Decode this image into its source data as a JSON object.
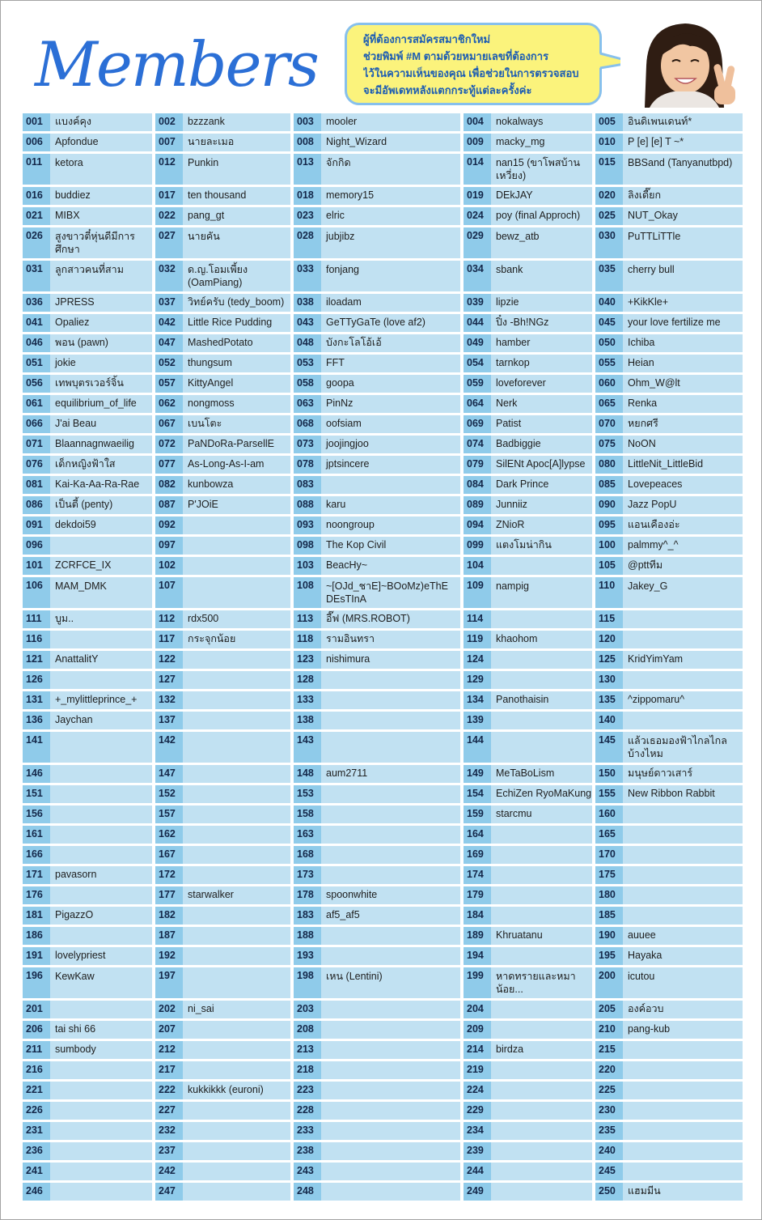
{
  "header": {
    "title": "Members"
  },
  "notice": {
    "lines": [
      "ผู้ที่ต้องการสมัครสมาชิกใหม่",
      "ช่วยพิมพ์ #M ตามด้วยหมายเลขที่ต้องการ",
      "ไว้ในความเห็นของคุณ เพื่อช่วยในการตรวจสอบ",
      "จะมีอัพเดทหลังแตกกระทู้แต่ละครั้งค่ะ"
    ]
  },
  "colors": {
    "title": "#2b6fd6",
    "number_bg": "#8fcbea",
    "name_bg": "#c1e1f2",
    "bubble_bg": "#fbf37c",
    "bubble_border": "#87c0ec",
    "bubble_text": "#1d5db3"
  },
  "members": {
    "rows": [
      [
        {
          "no": "001",
          "name": "แบงค์คุง"
        },
        {
          "no": "002",
          "name": "bzzzank"
        },
        {
          "no": "003",
          "name": "mooler"
        },
        {
          "no": "004",
          "name": "nokalways"
        },
        {
          "no": "005",
          "name": "อินดิเพนเดนท์*"
        }
      ],
      [
        {
          "no": "006",
          "name": "Apfondue"
        },
        {
          "no": "007",
          "name": "นายละเมอ"
        },
        {
          "no": "008",
          "name": "Night_Wizard"
        },
        {
          "no": "009",
          "name": "macky_mg"
        },
        {
          "no": "010",
          "name": "P [e] [e] T ~*"
        }
      ],
      [
        {
          "no": "011",
          "name": "ketora"
        },
        {
          "no": "012",
          "name": "Punkin"
        },
        {
          "no": "013",
          "name": "จักกิด"
        },
        {
          "no": "014",
          "name": "nan15 (ขาโพสบ้านเหวี่ยง)"
        },
        {
          "no": "015",
          "name": "BBSand (Tanyanutbpd)"
        }
      ],
      [
        {
          "no": "016",
          "name": "buddiez"
        },
        {
          "no": "017",
          "name": "ten thousand"
        },
        {
          "no": "018",
          "name": "memory15"
        },
        {
          "no": "019",
          "name": "DEkJAY"
        },
        {
          "no": "020",
          "name": "ลิงเดี๊ยก"
        }
      ],
      [
        {
          "no": "021",
          "name": "MIBX"
        },
        {
          "no": "022",
          "name": "pang_gt"
        },
        {
          "no": "023",
          "name": "elric"
        },
        {
          "no": "024",
          "name": "poy (final Approch)"
        },
        {
          "no": "025",
          "name": "NUT_Okay"
        }
      ],
      [
        {
          "no": "026",
          "name": "สูงขาวตี๋หุ่นดีมีการศึกษา"
        },
        {
          "no": "027",
          "name": "นายคัน"
        },
        {
          "no": "028",
          "name": "jubjibz"
        },
        {
          "no": "029",
          "name": "bewz_atb"
        },
        {
          "no": "030",
          "name": "PuTTLiTTle"
        }
      ],
      [
        {
          "no": "031",
          "name": "ลูกสาวคนที่สาม"
        },
        {
          "no": "032",
          "name": "ด.ญ.โอมเพี้ยง (OamPiang)"
        },
        {
          "no": "033",
          "name": "fonjang"
        },
        {
          "no": "034",
          "name": "sbank"
        },
        {
          "no": "035",
          "name": "cherry bull"
        }
      ],
      [
        {
          "no": "036",
          "name": "JPRESS"
        },
        {
          "no": "037",
          "name": "วิทย์ครับ (tedy_boom)"
        },
        {
          "no": "038",
          "name": "iloadam"
        },
        {
          "no": "039",
          "name": "lipzie"
        },
        {
          "no": "040",
          "name": "+KikKle+"
        }
      ],
      [
        {
          "no": "041",
          "name": "Opaliez"
        },
        {
          "no": "042",
          "name": "Little Rice Pudding"
        },
        {
          "no": "043",
          "name": "GeTTyGaTe (love af2)"
        },
        {
          "no": "044",
          "name": "ปิ๋ง -Bh!NGz"
        },
        {
          "no": "045",
          "name": "your love fertilize me"
        }
      ],
      [
        {
          "no": "046",
          "name": "พอน (pawn)"
        },
        {
          "no": "047",
          "name": "MashedPotato"
        },
        {
          "no": "048",
          "name": "บังกะโลโอ้เอ้"
        },
        {
          "no": "049",
          "name": "hamber"
        },
        {
          "no": "050",
          "name": "Ichiba"
        }
      ],
      [
        {
          "no": "051",
          "name": "jokie"
        },
        {
          "no": "052",
          "name": "thungsum"
        },
        {
          "no": "053",
          "name": "FFT"
        },
        {
          "no": "054",
          "name": "tarnkop"
        },
        {
          "no": "055",
          "name": "Heian"
        }
      ],
      [
        {
          "no": "056",
          "name": "เทพบุตรเวอร์จิ้น"
        },
        {
          "no": "057",
          "name": "KittyAngel"
        },
        {
          "no": "058",
          "name": "goopa"
        },
        {
          "no": "059",
          "name": "loveforever"
        },
        {
          "no": "060",
          "name": "Ohm_W@lt"
        }
      ],
      [
        {
          "no": "061",
          "name": "equilibrium_of_life"
        },
        {
          "no": "062",
          "name": "nongmoss"
        },
        {
          "no": "063",
          "name": "PinNz"
        },
        {
          "no": "064",
          "name": "Nerk"
        },
        {
          "no": "065",
          "name": "Renka"
        }
      ],
      [
        {
          "no": "066",
          "name": "J'ai Beau"
        },
        {
          "no": "067",
          "name": "เบนโตะ"
        },
        {
          "no": "068",
          "name": "oofsiam"
        },
        {
          "no": "069",
          "name": "Patist"
        },
        {
          "no": "070",
          "name": "หยกศรี"
        }
      ],
      [
        {
          "no": "071",
          "name": "Blaannagnwaeilig"
        },
        {
          "no": "072",
          "name": "PaNDoRa-ParsellE"
        },
        {
          "no": "073",
          "name": "joojingjoo"
        },
        {
          "no": "074",
          "name": "Badbiggie"
        },
        {
          "no": "075",
          "name": "NoON"
        }
      ],
      [
        {
          "no": "076",
          "name": "เด็กหญิงฟ้าใส"
        },
        {
          "no": "077",
          "name": "As-Long-As-I-am"
        },
        {
          "no": "078",
          "name": "jptsincere"
        },
        {
          "no": "079",
          "name": "SilENt Apoc[A]lypse"
        },
        {
          "no": "080",
          "name": "LittleNit_LittleBid"
        }
      ],
      [
        {
          "no": "081",
          "name": "Kai-Ka-Aa-Ra-Rae"
        },
        {
          "no": "082",
          "name": "kunbowza"
        },
        {
          "no": "083"
        },
        {
          "no": "084",
          "name": "Dark Prince"
        },
        {
          "no": "085",
          "name": "Lovepeaces"
        }
      ],
      [
        {
          "no": "086",
          "name": "เป็นตี้ (penty)"
        },
        {
          "no": "087",
          "name": "P'JOiE"
        },
        {
          "no": "088",
          "name": "karu"
        },
        {
          "no": "089",
          "name": "Junniiz"
        },
        {
          "no": "090",
          "name": "Jazz PopU"
        }
      ],
      [
        {
          "no": "091",
          "name": "dekdoi59"
        },
        {
          "no": "092"
        },
        {
          "no": "093",
          "name": "noongroup"
        },
        {
          "no": "094",
          "name": "ZNioR"
        },
        {
          "no": "095",
          "name": "แอนเคืองอ่ะ"
        }
      ],
      [
        {
          "no": "096"
        },
        {
          "no": "097"
        },
        {
          "no": "098",
          "name": "The Kop Civil"
        },
        {
          "no": "099",
          "name": "แตงโมน่ากิน"
        },
        {
          "no": "100",
          "name": "palmmy^_^"
        }
      ],
      [
        {
          "no": "101",
          "name": "ZCRFCE_IX"
        },
        {
          "no": "102"
        },
        {
          "no": "103",
          "name": "BeacHy~"
        },
        {
          "no": "104"
        },
        {
          "no": "105",
          "name": "@pttทีม"
        }
      ],
      [
        {
          "no": "106",
          "name": "MAM_DMK"
        },
        {
          "no": "107"
        },
        {
          "no": "108",
          "name": "~[OJd_ชาE]~BOoMz)eThE DEsTInA"
        },
        {
          "no": "109",
          "name": "nampig"
        },
        {
          "no": "110",
          "name": "Jakey_G"
        }
      ],
      [
        {
          "no": "111",
          "name": "บูม.."
        },
        {
          "no": "112",
          "name": "rdx500"
        },
        {
          "no": "113",
          "name": "อี๊ฟ (MRS.ROBOT)"
        },
        {
          "no": "114"
        },
        {
          "no": "115"
        }
      ],
      [
        {
          "no": "116"
        },
        {
          "no": "117",
          "name": "กระจุกน้อย"
        },
        {
          "no": "118",
          "name": "รามอินทรา"
        },
        {
          "no": "119",
          "name": "khaohom"
        },
        {
          "no": "120"
        }
      ],
      [
        {
          "no": "121",
          "name": "AnattalitY"
        },
        {
          "no": "122"
        },
        {
          "no": "123",
          "name": "nishimura"
        },
        {
          "no": "124"
        },
        {
          "no": "125",
          "name": "KridYimYam"
        }
      ],
      [
        {
          "no": "126"
        },
        {
          "no": "127"
        },
        {
          "no": "128"
        },
        {
          "no": "129"
        },
        {
          "no": "130"
        }
      ],
      [
        {
          "no": "131",
          "name": "+_mylittleprince_+"
        },
        {
          "no": "132"
        },
        {
          "no": "133"
        },
        {
          "no": "134",
          "name": "Panothaisin"
        },
        {
          "no": "135",
          "name": "^zippomaru^"
        }
      ],
      [
        {
          "no": "136",
          "name": "Jaychan"
        },
        {
          "no": "137"
        },
        {
          "no": "138"
        },
        {
          "no": "139"
        },
        {
          "no": "140"
        }
      ],
      [
        {
          "no": "141"
        },
        {
          "no": "142"
        },
        {
          "no": "143"
        },
        {
          "no": "144"
        },
        {
          "no": "145",
          "name": "แล้วเธอมองฟ้าไกลไกลบ้างไหม"
        }
      ],
      [
        {
          "no": "146"
        },
        {
          "no": "147"
        },
        {
          "no": "148",
          "name": "aum2711"
        },
        {
          "no": "149",
          "name": "MeTaBoLism"
        },
        {
          "no": "150",
          "name": "มนุษย์ดาวเสาร์"
        }
      ],
      [
        {
          "no": "151"
        },
        {
          "no": "152"
        },
        {
          "no": "153"
        },
        {
          "no": "154",
          "name": "EchiZen RyoMaKung"
        },
        {
          "no": "155",
          "name": "New Ribbon Rabbit"
        }
      ],
      [
        {
          "no": "156"
        },
        {
          "no": "157"
        },
        {
          "no": "158"
        },
        {
          "no": "159",
          "name": "starcmu"
        },
        {
          "no": "160"
        }
      ],
      [
        {
          "no": "161"
        },
        {
          "no": "162"
        },
        {
          "no": "163"
        },
        {
          "no": "164"
        },
        {
          "no": "165"
        }
      ],
      [
        {
          "no": "166"
        },
        {
          "no": "167"
        },
        {
          "no": "168"
        },
        {
          "no": "169"
        },
        {
          "no": "170"
        }
      ],
      [
        {
          "no": "171",
          "name": "pavasorn"
        },
        {
          "no": "172"
        },
        {
          "no": "173"
        },
        {
          "no": "174"
        },
        {
          "no": "175"
        }
      ],
      [
        {
          "no": "176"
        },
        {
          "no": "177",
          "name": "starwalker"
        },
        {
          "no": "178",
          "name": "spoonwhite"
        },
        {
          "no": "179"
        },
        {
          "no": "180"
        }
      ],
      [
        {
          "no": "181",
          "name": "PigazzO"
        },
        {
          "no": "182"
        },
        {
          "no": "183",
          "name": "af5_af5"
        },
        {
          "no": "184"
        },
        {
          "no": "185"
        }
      ],
      [
        {
          "no": "186"
        },
        {
          "no": "187"
        },
        {
          "no": "188"
        },
        {
          "no": "189",
          "name": "Khruatanu"
        },
        {
          "no": "190",
          "name": "auuee"
        }
      ],
      [
        {
          "no": "191",
          "name": "lovelypriest"
        },
        {
          "no": "192"
        },
        {
          "no": "193"
        },
        {
          "no": "194"
        },
        {
          "no": "195",
          "name": "Hayaka"
        }
      ],
      [
        {
          "no": "196",
          "name": "KewKaw"
        },
        {
          "no": "197"
        },
        {
          "no": "198",
          "name": "เหน (Lentini)"
        },
        {
          "no": "199",
          "name": "หาดทรายและหมาน้อย..."
        },
        {
          "no": "200",
          "name": "icutou"
        }
      ],
      [
        {
          "no": "201"
        },
        {
          "no": "202",
          "name": "ni_sai"
        },
        {
          "no": "203"
        },
        {
          "no": "204"
        },
        {
          "no": "205",
          "name": "องค์อวบ"
        }
      ],
      [
        {
          "no": "206",
          "name": "tai shi 66"
        },
        {
          "no": "207"
        },
        {
          "no": "208"
        },
        {
          "no": "209"
        },
        {
          "no": "210",
          "name": "pang-kub"
        }
      ],
      [
        {
          "no": "211",
          "name": "sumbody"
        },
        {
          "no": "212"
        },
        {
          "no": "213"
        },
        {
          "no": "214",
          "name": "birdza"
        },
        {
          "no": "215"
        }
      ],
      [
        {
          "no": "216"
        },
        {
          "no": "217"
        },
        {
          "no": "218"
        },
        {
          "no": "219"
        },
        {
          "no": "220"
        }
      ],
      [
        {
          "no": "221"
        },
        {
          "no": "222",
          "name": "kukkikkk (euroni)"
        },
        {
          "no": "223"
        },
        {
          "no": "224"
        },
        {
          "no": "225"
        }
      ],
      [
        {
          "no": "226"
        },
        {
          "no": "227"
        },
        {
          "no": "228"
        },
        {
          "no": "229"
        },
        {
          "no": "230"
        }
      ],
      [
        {
          "no": "231"
        },
        {
          "no": "232"
        },
        {
          "no": "233"
        },
        {
          "no": "234"
        },
        {
          "no": "235"
        }
      ],
      [
        {
          "no": "236"
        },
        {
          "no": "237"
        },
        {
          "no": "238"
        },
        {
          "no": "239"
        },
        {
          "no": "240"
        }
      ],
      [
        {
          "no": "241"
        },
        {
          "no": "242"
        },
        {
          "no": "243"
        },
        {
          "no": "244"
        },
        {
          "no": "245"
        }
      ],
      [
        {
          "no": "246"
        },
        {
          "no": "247"
        },
        {
          "no": "248"
        },
        {
          "no": "249"
        },
        {
          "no": "250",
          "name": "แฮมมีน"
        }
      ]
    ]
  }
}
